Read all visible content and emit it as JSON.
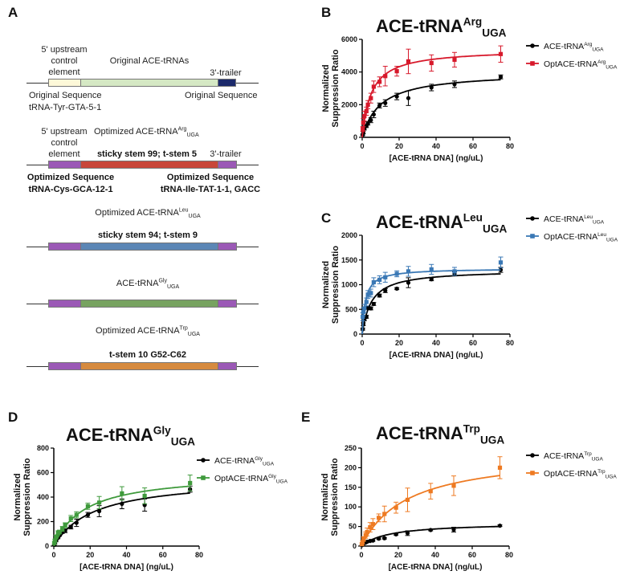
{
  "panel_labels": {
    "A": "A",
    "B": "B",
    "C": "C",
    "D": "D",
    "E": "E"
  },
  "diagram": {
    "row1": {
      "upstream": [
        "5' upstream",
        "control",
        "element"
      ],
      "title": "Original ACE-tRNAs",
      "trailer": "3'-trailer",
      "left_note": [
        "Original Sequence",
        "tRNA-Tyr-GTA-5-1"
      ],
      "right_note": "Original Sequence",
      "colors": {
        "upstream": "#fdf8d8",
        "body": "#d5e8c4",
        "trailer": "#1c2a6b"
      }
    },
    "row2": {
      "upstream": [
        "5' upstream",
        "control",
        "element"
      ],
      "title": "Optimized ACE-tRNA",
      "title_sup": "Arg",
      "title_sub": "UGA",
      "feature": "sticky stem 99; t-stem 5",
      "trailer": "3'-trailer",
      "left_note": [
        "Optimized Sequence",
        "tRNA-Cys-GCA-12-1"
      ],
      "right_note": [
        "Optimized Sequence",
        "tRNA-Ile-TAT-1-1, GACC"
      ],
      "colors": {
        "flank": "#9b59b6",
        "body": "#c8473a"
      }
    },
    "row3": {
      "title": "Optimized ACE-tRNA",
      "title_sup": "Leu",
      "title_sub": "UGA",
      "feature": "sticky stem 94; t-stem 9",
      "colors": {
        "flank": "#9b59b6",
        "body": "#5b86b5"
      }
    },
    "row4": {
      "title": "ACE-tRNA",
      "title_sup": "Gly",
      "title_sub": "UGA",
      "colors": {
        "flank": "#9b59b6",
        "body": "#77a360"
      }
    },
    "row5": {
      "title": "Optimized ACE-tRNA",
      "title_sup": "Trp",
      "title_sub": "UGA",
      "feature": "t-stem 10 G52-C62",
      "colors": {
        "flank": "#9b59b6",
        "body": "#d68a3e"
      }
    }
  },
  "chart_data": [
    {
      "id": "B",
      "type": "scatter",
      "title": {
        "main": "ACE-tRNA",
        "sup": "Arg",
        "sub": "UGA"
      },
      "xlabel": "[ACE-tRNA DNA] (ng/uL)",
      "ylabel": [
        "Normalized",
        "Suppression Ratio"
      ],
      "xlim": [
        0,
        80
      ],
      "ylim": [
        0,
        6000
      ],
      "xticks": [
        0,
        20,
        40,
        60,
        80
      ],
      "yticks": [
        0,
        2000,
        4000,
        6000
      ],
      "legend_position": "right",
      "series": [
        {
          "name": "ACE-tRNA",
          "sup": "Arg",
          "sub": "UGA",
          "color": "#000000",
          "marker": "circle",
          "fit": {
            "vmax": 4000,
            "km": 10
          },
          "x": [
            0.3,
            0.6,
            1.2,
            2.3,
            3.1,
            4.7,
            6.25,
            9.4,
            12.5,
            18.75,
            25,
            37.5,
            50,
            75
          ],
          "y": [
            150,
            300,
            550,
            700,
            850,
            1050,
            1400,
            1950,
            2100,
            2500,
            2400,
            3050,
            3250,
            3700
          ],
          "err": [
            50,
            80,
            100,
            100,
            100,
            150,
            200,
            150,
            200,
            200,
            450,
            200,
            200,
            120
          ]
        },
        {
          "name": "OptACE-tRNA",
          "sup": "Arg",
          "sub": "UGA",
          "color": "#d7192b",
          "marker": "square",
          "fit": {
            "vmax": 5400,
            "km": 5
          },
          "x": [
            0.3,
            0.6,
            1.2,
            2.3,
            3.1,
            4.7,
            6.25,
            9.4,
            12.5,
            18.75,
            25,
            37.5,
            50,
            75
          ],
          "y": [
            500,
            900,
            1300,
            1600,
            2000,
            2400,
            3100,
            3400,
            3750,
            4050,
            4650,
            4550,
            4750,
            5100
          ],
          "err": [
            150,
            250,
            300,
            250,
            250,
            300,
            350,
            300,
            600,
            300,
            750,
            500,
            450,
            500
          ]
        }
      ]
    },
    {
      "id": "C",
      "type": "scatter",
      "title": {
        "main": "ACE-tRNA",
        "sup": "Leu",
        "sub": "UGA"
      },
      "xlabel": "[ACE-tRNA DNA] (ng/uL)",
      "ylabel": [
        "Normalized",
        "Suppression Ratio"
      ],
      "xlim": [
        0,
        80
      ],
      "ylim": [
        0,
        2000
      ],
      "xticks": [
        0,
        20,
        40,
        60,
        80
      ],
      "yticks": [
        0,
        500,
        1000,
        1500,
        2000
      ],
      "legend_position": "right",
      "series": [
        {
          "name": "ACE-tRNA",
          "sup": "Leu",
          "sub": "UGA",
          "color": "#000000",
          "marker": "circle",
          "fit": {
            "vmax": 1300,
            "km": 5
          },
          "x": [
            0.3,
            0.6,
            1.2,
            2.3,
            3.1,
            4.7,
            6.25,
            9.4,
            12.5,
            18.75,
            25,
            37.5,
            50,
            75
          ],
          "y": [
            100,
            200,
            300,
            350,
            530,
            520,
            610,
            780,
            880,
            920,
            1040,
            1110,
            1220,
            1300
          ],
          "err": [
            20,
            30,
            30,
            30,
            30,
            30,
            30,
            30,
            40,
            20,
            100,
            30,
            40,
            50
          ]
        },
        {
          "name": "OptACE-tRNA",
          "sup": "Leu",
          "sub": "UGA",
          "color": "#3a78b5",
          "marker": "square",
          "fit": {
            "vmax": 1330,
            "km": 1.8
          },
          "x": [
            0.3,
            0.6,
            1.2,
            2.3,
            3.1,
            4.7,
            6.25,
            9.4,
            12.5,
            18.75,
            25,
            37.5,
            50,
            75
          ],
          "y": [
            350,
            450,
            520,
            650,
            800,
            830,
            1050,
            1100,
            1150,
            1220,
            1270,
            1310,
            1270,
            1450
          ],
          "err": [
            80,
            80,
            80,
            80,
            80,
            80,
            90,
            80,
            100,
            60,
            100,
            100,
            80,
            110
          ]
        }
      ]
    },
    {
      "id": "D",
      "type": "scatter",
      "title": {
        "main": "ACE-tRNA",
        "sup": "Gly",
        "sub": "UGA"
      },
      "xlabel": "[ACE-tRNA DNA] (ng/uL)",
      "ylabel": [
        "Normalized",
        "Suppression Ratio"
      ],
      "xlim": [
        0,
        80
      ],
      "ylim": [
        0,
        800
      ],
      "xticks": [
        0,
        20,
        40,
        60,
        80
      ],
      "yticks": [
        0,
        200,
        400,
        600,
        800
      ],
      "legend_position": "right",
      "series": [
        {
          "name": "ACE-tRNA",
          "sup": "Gly",
          "sub": "UGA",
          "color": "#000000",
          "marker": "circle",
          "fit": {
            "vmax": 560,
            "km": 22
          },
          "x": [
            0.3,
            0.6,
            1.2,
            2.3,
            3.1,
            4.7,
            6.25,
            9.4,
            12.5,
            18.75,
            25,
            37.5,
            50,
            75
          ],
          "y": [
            10,
            25,
            45,
            70,
            90,
            115,
            125,
            155,
            190,
            255,
            285,
            345,
            335,
            465
          ],
          "err": [
            5,
            8,
            10,
            10,
            10,
            12,
            15,
            15,
            30,
            20,
            45,
            40,
            50,
            25
          ]
        },
        {
          "name": "OptACE-tRNA",
          "sup": "Gly",
          "sub": "UGA",
          "color": "#3f9a3c",
          "marker": "square",
          "fit": {
            "vmax": 600,
            "km": 17
          },
          "x": [
            0.3,
            0.6,
            1.2,
            2.3,
            3.1,
            4.7,
            6.25,
            9.4,
            12.5,
            18.75,
            25,
            37.5,
            50,
            75
          ],
          "y": [
            25,
            45,
            75,
            110,
            115,
            140,
            170,
            225,
            255,
            325,
            355,
            430,
            410,
            515
          ],
          "err": [
            8,
            10,
            15,
            15,
            15,
            20,
            20,
            25,
            25,
            25,
            50,
            55,
            65,
            65
          ]
        }
      ]
    },
    {
      "id": "E",
      "type": "scatter",
      "title": {
        "main": "ACE-tRNA",
        "sup": "Trp",
        "sub": "UGA"
      },
      "xlabel": "[ACE-tRNA DNA] (ng/uL)",
      "ylabel": [
        "Normalized",
        "Suppression Ratio"
      ],
      "xlim": [
        0,
        80
      ],
      "ylim": [
        0,
        250
      ],
      "xticks": [
        0,
        20,
        40,
        60,
        80
      ],
      "yticks": [
        0,
        50,
        100,
        150,
        200,
        250
      ],
      "legend_position": "right",
      "series": [
        {
          "name": "ACE-tRNA",
          "sup": "Trp",
          "sub": "UGA",
          "color": "#000000",
          "marker": "circle",
          "fit": {
            "vmax": 60,
            "km": 15
          },
          "x": [
            0.3,
            0.6,
            1.2,
            2.3,
            3.1,
            4.7,
            6.25,
            9.4,
            12.5,
            18.75,
            25,
            37.5,
            50,
            75
          ],
          "y": [
            2,
            4,
            6,
            9,
            11,
            13,
            14,
            19,
            20,
            30,
            33,
            41,
            42,
            52
          ],
          "err": [
            1,
            1,
            1,
            1,
            1,
            2,
            2,
            2,
            2,
            2,
            6,
            2,
            6,
            2
          ]
        },
        {
          "name": "OptACE-tRNA",
          "sup": "Trp",
          "sub": "UGA",
          "color": "#ee7a22",
          "marker": "square",
          "fit": {
            "vmax": 240,
            "km": 25
          },
          "x": [
            0.3,
            0.6,
            1.2,
            2.3,
            3.1,
            4.7,
            6.25,
            9.4,
            12.5,
            18.75,
            25,
            37.5,
            50,
            75
          ],
          "y": [
            5,
            10,
            18,
            28,
            36,
            48,
            56,
            72,
            82,
            98,
            118,
            140,
            154,
            200
          ],
          "err": [
            3,
            4,
            6,
            8,
            10,
            12,
            14,
            10,
            20,
            14,
            30,
            20,
            25,
            28
          ]
        }
      ]
    }
  ]
}
